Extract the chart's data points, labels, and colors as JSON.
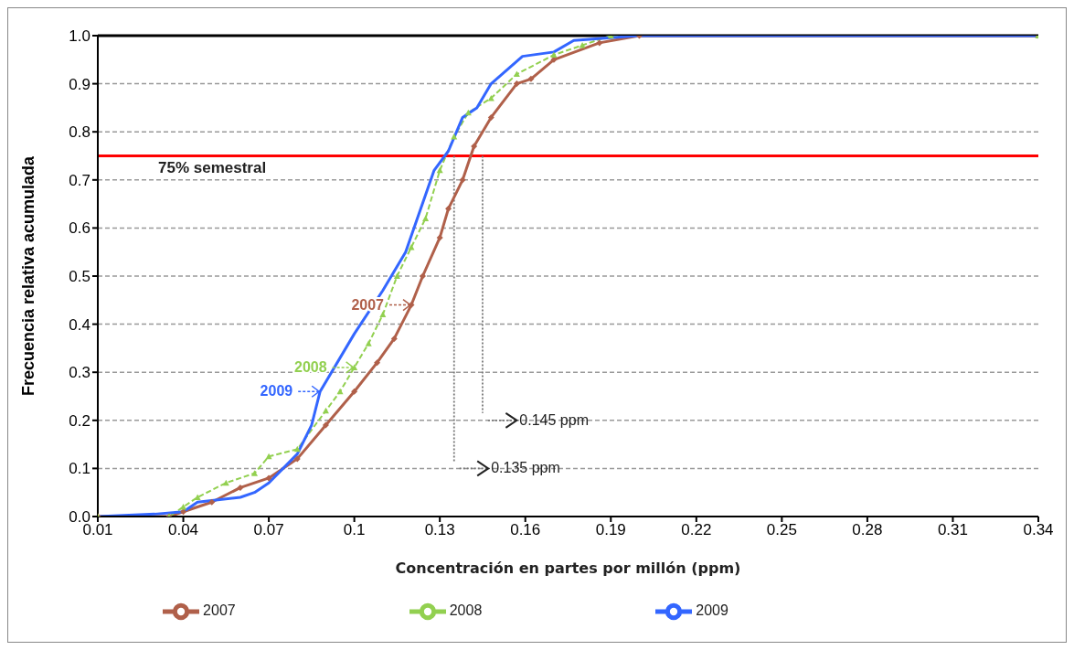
{
  "chart_data": {
    "type": "line",
    "xlabel": "Concentración  en partes por millón (ppm)",
    "ylabel": "Frecuencia relativa acumulada",
    "xlim": [
      0.01,
      0.34
    ],
    "xticks": [
      0.01,
      0.04,
      0.07,
      0.1,
      0.13,
      0.16,
      0.19,
      0.22,
      0.25,
      0.28,
      0.31,
      0.34
    ],
    "ylim": [
      0,
      1
    ],
    "yticks": [
      {
        "value": 0,
        "label": "0.0"
      },
      0.1,
      0.2,
      0.3,
      0.4,
      0.5,
      0.6,
      0.7,
      0.8,
      0.9,
      {
        "value": 1,
        "label": "1.0"
      }
    ],
    "grid": "y",
    "legend": "bottom",
    "series": [
      {
        "name": "2007",
        "color": "#b0604a",
        "marker": "diamond",
        "line_style": "solid",
        "x": [
          0.01,
          0.035,
          0.04,
          0.05,
          0.06,
          0.07,
          0.08,
          0.09,
          0.1,
          0.108,
          0.114,
          0.12,
          0.124,
          0.13,
          0.133,
          0.138,
          0.142,
          0.148,
          0.157,
          0.162,
          0.17,
          0.186,
          0.2,
          0.34
        ],
        "values": [
          0,
          0,
          0.01,
          0.03,
          0.06,
          0.08,
          0.12,
          0.19,
          0.26,
          0.32,
          0.37,
          0.44,
          0.5,
          0.58,
          0.64,
          0.7,
          0.77,
          0.83,
          0.9,
          0.91,
          0.95,
          0.985,
          1,
          1
        ]
      },
      {
        "name": "2008",
        "color": "#92d050",
        "marker": "triangle",
        "line_style": "dashed",
        "x": [
          0.01,
          0.035,
          0.04,
          0.045,
          0.055,
          0.065,
          0.07,
          0.08,
          0.09,
          0.095,
          0.1,
          0.105,
          0.11,
          0.115,
          0.12,
          0.125,
          0.13,
          0.135,
          0.14,
          0.148,
          0.157,
          0.17,
          0.18,
          0.19,
          0.34
        ],
        "values": [
          0,
          0,
          0.02,
          0.04,
          0.07,
          0.09,
          0.125,
          0.14,
          0.22,
          0.26,
          0.31,
          0.36,
          0.42,
          0.5,
          0.56,
          0.62,
          0.72,
          0.79,
          0.84,
          0.87,
          0.92,
          0.96,
          0.98,
          1,
          1
        ]
      },
      {
        "name": "2009",
        "color": "#3366ff",
        "marker": "none",
        "line_style": "solid",
        "x": [
          0.01,
          0.03,
          0.04,
          0.045,
          0.06,
          0.065,
          0.07,
          0.08,
          0.085,
          0.088,
          0.1,
          0.11,
          0.118,
          0.128,
          0.133,
          0.138,
          0.143,
          0.148,
          0.159,
          0.17,
          0.177,
          0.2,
          0.34
        ],
        "values": [
          0,
          0.005,
          0.01,
          0.03,
          0.04,
          0.05,
          0.07,
          0.13,
          0.19,
          0.26,
          0.38,
          0.47,
          0.55,
          0.72,
          0.76,
          0.83,
          0.85,
          0.9,
          0.957,
          0.966,
          0.99,
          1,
          1
        ]
      }
    ],
    "ref_lines": [
      {
        "axis": "y",
        "value": 0.75,
        "label": "75% semestral",
        "color": "#ff0000"
      },
      {
        "axis": "x",
        "value": 0.135,
        "label": "0.135 ppm",
        "color": "#777777",
        "line_style": "dotted"
      },
      {
        "axis": "x",
        "value": 0.145,
        "label": "0.145 ppm",
        "color": "#777777",
        "line_style": "dotted"
      }
    ],
    "annotations": [
      {
        "text": "2007",
        "x": 0.12,
        "y": 0.44
      },
      {
        "text": "2008",
        "x": 0.1,
        "y": 0.31
      },
      {
        "text": "2009",
        "x": 0.088,
        "y": 0.26
      }
    ]
  }
}
